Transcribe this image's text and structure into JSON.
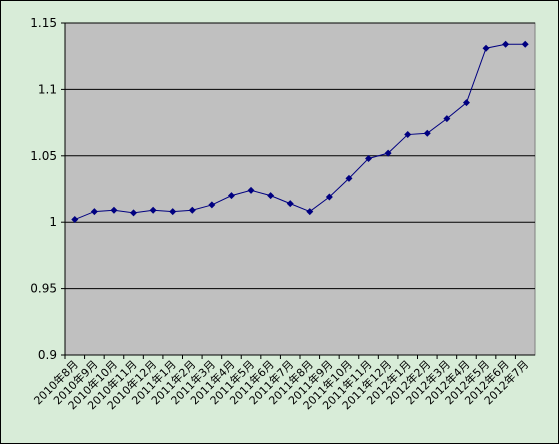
{
  "chart_data": {
    "type": "line",
    "categories": [
      "2010年8月",
      "2010年9月",
      "2010年10月",
      "2010年11月",
      "2010年12月",
      "2011年1月",
      "2011年2月",
      "2011年3月",
      "2011年4月",
      "2011年5月",
      "2011年6月",
      "2011年7月",
      "2011年8月",
      "2011年9月",
      "2011年10月",
      "2011年11月",
      "2011年12月",
      "2012年1月",
      "2012年2月",
      "2012年3月",
      "2012年4月",
      "2012年5月",
      "2012年6月",
      "2012年7月"
    ],
    "series": [
      {
        "color": "#000080",
        "values": [
          1.002,
          1.008,
          1.009,
          1.007,
          1.009,
          1.008,
          1.009,
          1.013,
          1.02,
          1.024,
          1.02,
          1.014,
          1.008,
          1.019,
          1.033,
          1.048,
          1.052,
          1.066,
          1.067,
          1.078,
          1.09,
          1.131,
          1.134,
          1.134
        ]
      }
    ],
    "ylim": [
      0.9,
      1.15
    ],
    "yticks": [
      0.9,
      0.95,
      1,
      1.05,
      1.1,
      1.15
    ],
    "grid": true
  }
}
